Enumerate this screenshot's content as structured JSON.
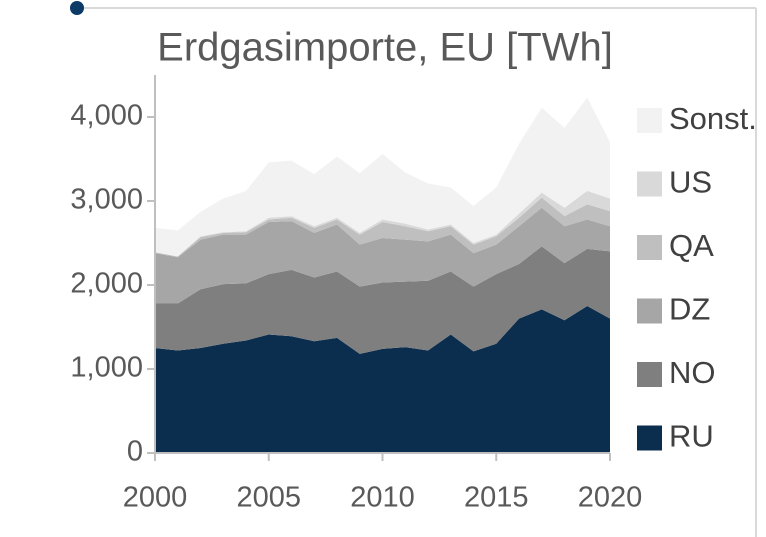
{
  "chart_data": {
    "type": "stacked_area",
    "title": "Erdgasimporte, EU [TWh]",
    "x": [
      2000,
      2001,
      2002,
      2003,
      2004,
      2005,
      2006,
      2007,
      2008,
      2009,
      2010,
      2011,
      2012,
      2013,
      2014,
      2015,
      2016,
      2017,
      2018,
      2019,
      2020
    ],
    "series": [
      {
        "name": "RU",
        "color": "#0b2d4e",
        "values": [
          1250,
          1220,
          1250,
          1300,
          1340,
          1410,
          1390,
          1330,
          1370,
          1180,
          1240,
          1260,
          1220,
          1410,
          1210,
          1300,
          1600,
          1710,
          1580,
          1750,
          1600
        ]
      },
      {
        "name": "NO",
        "color": "#7f7f7f",
        "values": [
          530,
          560,
          700,
          710,
          680,
          720,
          790,
          760,
          790,
          800,
          790,
          780,
          830,
          750,
          770,
          830,
          650,
          750,
          680,
          680,
          800
        ]
      },
      {
        "name": "DZ",
        "color": "#a6a6a6",
        "values": [
          600,
          550,
          590,
          590,
          580,
          620,
          580,
          530,
          560,
          500,
          530,
          500,
          470,
          440,
          400,
          350,
          450,
          460,
          440,
          350,
          300
        ]
      },
      {
        "name": "QA",
        "color": "#bfbfbf",
        "values": [
          10,
          10,
          30,
          20,
          30,
          30,
          40,
          60,
          60,
          120,
          190,
          160,
          120,
          100,
          100,
          100,
          100,
          120,
          120,
          180,
          180
        ]
      },
      {
        "name": "US",
        "color": "#d9d9d9",
        "values": [
          0,
          0,
          10,
          10,
          10,
          20,
          20,
          20,
          20,
          20,
          30,
          30,
          20,
          20,
          20,
          20,
          50,
          60,
          100,
          160,
          150
        ]
      },
      {
        "name": "Sonst.",
        "color": "#f2f2f2",
        "values": [
          290,
          310,
          290,
          400,
          480,
          660,
          660,
          620,
          730,
          710,
          780,
          610,
          550,
          440,
          440,
          560,
          830,
          1010,
          950,
          1110,
          670
        ]
      }
    ],
    "xlim": [
      2000,
      2020
    ],
    "xticks": [
      2000,
      2005,
      2010,
      2015,
      2020
    ],
    "ylim": [
      0,
      4500
    ],
    "yticks": [
      0,
      {
        "value": 1000,
        "label": "1,000"
      },
      {
        "value": 2000,
        "label": "2,000"
      },
      {
        "value": 3000,
        "label": "3,000"
      },
      {
        "value": 4000,
        "label": "4,000"
      }
    ]
  }
}
